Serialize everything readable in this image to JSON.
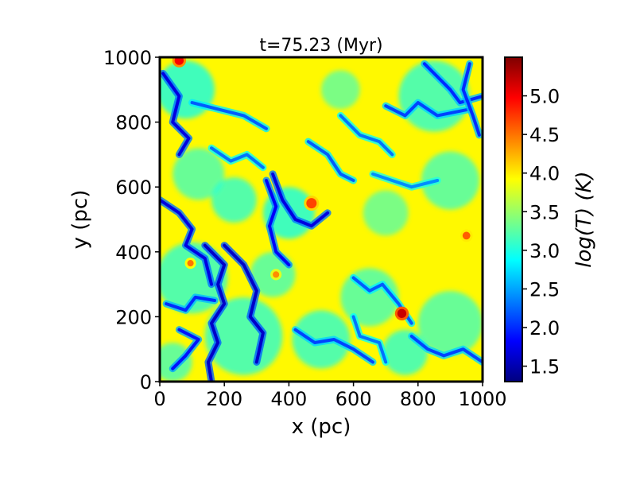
{
  "chart_data": {
    "type": "heatmap",
    "title": "t=75.23 (Myr)",
    "xlabel": "x (pc)",
    "ylabel": "y (pc)",
    "xlim": [
      0,
      1000
    ],
    "ylim": [
      0,
      1000
    ],
    "xticks": [
      "0",
      "200",
      "400",
      "600",
      "800",
      "1000"
    ],
    "xtick_values": [
      0,
      200,
      400,
      600,
      800,
      1000
    ],
    "yticks": [
      "0",
      "200",
      "400",
      "600",
      "800",
      "1000"
    ],
    "ytick_values": [
      0,
      200,
      400,
      600,
      800,
      1000
    ],
    "colorbar": {
      "label": "log(T) (K)",
      "range": [
        1.3,
        5.5
      ],
      "ticks": [
        "1.5",
        "2.0",
        "2.5",
        "3.0",
        "3.5",
        "4.0",
        "4.5",
        "5.0"
      ],
      "tick_values": [
        1.5,
        2.0,
        2.5,
        3.0,
        3.5,
        4.0,
        4.5,
        5.0
      ],
      "colormap": "jet"
    },
    "background_level": 3.95,
    "cold_filaments": [
      {
        "level": 1.7,
        "points": [
          [
            10,
            950
          ],
          [
            60,
            880
          ],
          [
            40,
            800
          ],
          [
            90,
            750
          ],
          [
            60,
            700
          ]
        ]
      },
      {
        "level": 1.7,
        "points": [
          [
            0,
            560
          ],
          [
            60,
            520
          ],
          [
            100,
            470
          ],
          [
            80,
            420
          ],
          [
            140,
            380
          ],
          [
            160,
            300
          ]
        ]
      },
      {
        "level": 1.6,
        "points": [
          [
            140,
            420
          ],
          [
            200,
            360
          ],
          [
            180,
            300
          ],
          [
            200,
            240
          ],
          [
            160,
            180
          ],
          [
            180,
            120
          ],
          [
            150,
            60
          ],
          [
            160,
            0
          ]
        ]
      },
      {
        "level": 1.6,
        "points": [
          [
            200,
            420
          ],
          [
            260,
            360
          ],
          [
            300,
            280
          ],
          [
            280,
            200
          ],
          [
            320,
            150
          ],
          [
            300,
            60
          ]
        ]
      },
      {
        "level": 1.7,
        "points": [
          [
            350,
            640
          ],
          [
            380,
            560
          ],
          [
            420,
            500
          ],
          [
            470,
            480
          ],
          [
            520,
            520
          ]
        ]
      },
      {
        "level": 1.8,
        "points": [
          [
            330,
            620
          ],
          [
            360,
            540
          ],
          [
            340,
            480
          ],
          [
            360,
            400
          ],
          [
            400,
            360
          ]
        ]
      },
      {
        "level": 1.9,
        "points": [
          [
            60,
            160
          ],
          [
            120,
            130
          ],
          [
            80,
            80
          ],
          [
            40,
            40
          ]
        ]
      },
      {
        "level": 2.0,
        "points": [
          [
            20,
            240
          ],
          [
            80,
            220
          ],
          [
            110,
            260
          ],
          [
            170,
            250
          ]
        ]
      },
      {
        "level": 2.1,
        "points": [
          [
            700,
            850
          ],
          [
            760,
            820
          ],
          [
            800,
            860
          ],
          [
            860,
            820
          ],
          [
            960,
            840
          ]
        ]
      },
      {
        "level": 2.0,
        "points": [
          [
            820,
            980
          ],
          [
            860,
            940
          ],
          [
            900,
            900
          ],
          [
            930,
            860
          ],
          [
            1000,
            880
          ]
        ]
      },
      {
        "level": 2.2,
        "points": [
          [
            600,
            320
          ],
          [
            650,
            280
          ],
          [
            690,
            300
          ],
          [
            740,
            240
          ],
          [
            780,
            180
          ]
        ]
      },
      {
        "level": 2.1,
        "points": [
          [
            420,
            160
          ],
          [
            480,
            120
          ],
          [
            540,
            130
          ],
          [
            600,
            100
          ],
          [
            660,
            60
          ]
        ]
      },
      {
        "level": 2.1,
        "points": [
          [
            780,
            140
          ],
          [
            830,
            100
          ],
          [
            880,
            80
          ],
          [
            940,
            100
          ],
          [
            1000,
            60
          ]
        ]
      },
      {
        "level": 2.3,
        "points": [
          [
            160,
            720
          ],
          [
            220,
            680
          ],
          [
            270,
            700
          ],
          [
            320,
            660
          ]
        ]
      },
      {
        "level": 2.2,
        "points": [
          [
            100,
            860
          ],
          [
            180,
            840
          ],
          [
            260,
            820
          ],
          [
            330,
            780
          ]
        ]
      },
      {
        "level": 2.3,
        "points": [
          [
            560,
            820
          ],
          [
            620,
            760
          ],
          [
            680,
            740
          ],
          [
            720,
            700
          ]
        ]
      },
      {
        "level": 2.2,
        "points": [
          [
            460,
            740
          ],
          [
            520,
            700
          ],
          [
            560,
            640
          ],
          [
            600,
            620
          ]
        ]
      },
      {
        "level": 2.0,
        "points": [
          [
            960,
            980
          ],
          [
            940,
            900
          ],
          [
            970,
            820
          ],
          [
            990,
            760
          ]
        ]
      },
      {
        "level": 2.4,
        "points": [
          [
            660,
            640
          ],
          [
            720,
            620
          ],
          [
            780,
            600
          ],
          [
            860,
            620
          ]
        ]
      },
      {
        "level": 2.3,
        "points": [
          [
            600,
            200
          ],
          [
            620,
            140
          ],
          [
            680,
            120
          ],
          [
            700,
            60
          ]
        ]
      }
    ],
    "cool_blobs": [
      {
        "x": 80,
        "y": 900,
        "r": 90,
        "level": 2.9
      },
      {
        "x": 120,
        "y": 640,
        "r": 80,
        "level": 3.1
      },
      {
        "x": 230,
        "y": 560,
        "r": 70,
        "level": 3.0
      },
      {
        "x": 100,
        "y": 320,
        "r": 110,
        "level": 3.0
      },
      {
        "x": 260,
        "y": 140,
        "r": 120,
        "level": 3.0
      },
      {
        "x": 400,
        "y": 520,
        "r": 80,
        "level": 2.9
      },
      {
        "x": 350,
        "y": 330,
        "r": 70,
        "level": 3.1
      },
      {
        "x": 560,
        "y": 900,
        "r": 60,
        "level": 3.2
      },
      {
        "x": 850,
        "y": 880,
        "r": 110,
        "level": 3.0
      },
      {
        "x": 900,
        "y": 620,
        "r": 90,
        "level": 3.1
      },
      {
        "x": 700,
        "y": 520,
        "r": 70,
        "level": 3.2
      },
      {
        "x": 650,
        "y": 260,
        "r": 90,
        "level": 3.1
      },
      {
        "x": 500,
        "y": 130,
        "r": 90,
        "level": 3.0
      },
      {
        "x": 900,
        "y": 180,
        "r": 100,
        "level": 3.1
      },
      {
        "x": 760,
        "y": 90,
        "r": 70,
        "level": 3.0
      },
      {
        "x": 40,
        "y": 60,
        "r": 60,
        "level": 3.1
      }
    ],
    "hot_spots": [
      {
        "x": 60,
        "y": 990,
        "r": 14,
        "level": 5.0
      },
      {
        "x": 470,
        "y": 550,
        "r": 16,
        "level": 4.7
      },
      {
        "x": 950,
        "y": 450,
        "r": 12,
        "level": 4.6
      },
      {
        "x": 750,
        "y": 210,
        "r": 14,
        "level": 5.2
      },
      {
        "x": 95,
        "y": 365,
        "r": 10,
        "level": 4.5
      },
      {
        "x": 360,
        "y": 330,
        "r": 10,
        "level": 4.4
      }
    ]
  }
}
